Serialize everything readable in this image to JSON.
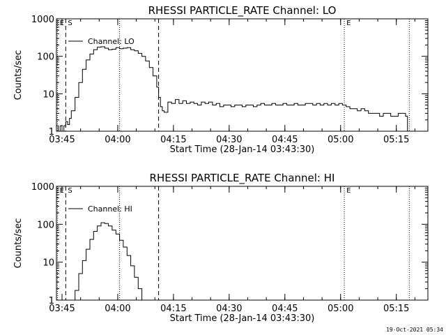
{
  "footer": {
    "timestamp": "19-Oct-2021 05:34"
  },
  "chart_data": [
    {
      "type": "line",
      "title": "RHESSI PARTICLE_RATE Channel: LO",
      "xlabel": "Start Time (28-Jan-14 03:43:30)",
      "ylabel": "Counts/sec",
      "yscale": "log",
      "ylim": [
        1,
        1000
      ],
      "xlim_minutes": [
        0,
        100
      ],
      "xticks": [
        {
          "t": 1.5,
          "label": "03:45"
        },
        {
          "t": 16.5,
          "label": "04:00"
        },
        {
          "t": 31.5,
          "label": "04:15"
        },
        {
          "t": 46.5,
          "label": "04:30"
        },
        {
          "t": 61.5,
          "label": "04:45"
        },
        {
          "t": 76.5,
          "label": "05:00"
        },
        {
          "t": 91.5,
          "label": "05:15"
        }
      ],
      "yticks": [
        {
          "v": 1,
          "label": "1"
        },
        {
          "v": 10,
          "label": "10"
        },
        {
          "v": 100,
          "label": "100"
        },
        {
          "v": 1000,
          "label": "1000"
        }
      ],
      "legend": {
        "label": "Channel: LO",
        "placement": "top-left"
      },
      "markers": [
        {
          "t": 0.3,
          "style": "dotted",
          "label": "E"
        },
        {
          "t": 2.5,
          "style": "dashed",
          "label": "S"
        },
        {
          "t": 17.0,
          "style": "dotted",
          "label": ""
        },
        {
          "t": 27.5,
          "style": "dashed",
          "label": ""
        },
        {
          "t": 77.5,
          "style": "dotted",
          "label": "E"
        },
        {
          "t": 95.0,
          "style": "dotted",
          "label": ""
        }
      ],
      "series": [
        {
          "name": "Channel: LO",
          "x": [
            0,
            0.5,
            1,
            1.5,
            2,
            2.5,
            3,
            3.5,
            4,
            5,
            6,
            7,
            8,
            9,
            10,
            11,
            12,
            13,
            14,
            15,
            16,
            17,
            18,
            19,
            20,
            21,
            22,
            23,
            24,
            25,
            26,
            27,
            27.5,
            28,
            28.5,
            29,
            30,
            31,
            32,
            33,
            34,
            35,
            36,
            37,
            38,
            39,
            40,
            41,
            42,
            43,
            44,
            45,
            46,
            47,
            48,
            49,
            50,
            51,
            52,
            53,
            54,
            55,
            56,
            57,
            58,
            59,
            60,
            61,
            62,
            63,
            64,
            65,
            66,
            67,
            68,
            69,
            70,
            71,
            72,
            73,
            74,
            75,
            76,
            77,
            78,
            79,
            80,
            81,
            82,
            83,
            84,
            85,
            86,
            87,
            88,
            89,
            90,
            91,
            92,
            93,
            94,
            94.5
          ],
          "y": [
            1.4,
            1,
            1.4,
            1,
            1.4,
            1.8,
            1.5,
            2.2,
            3.5,
            8,
            20,
            45,
            80,
            115,
            150,
            175,
            180,
            165,
            150,
            155,
            170,
            160,
            165,
            170,
            150,
            140,
            120,
            100,
            75,
            50,
            30,
            15,
            8,
            4.5,
            3.5,
            3.2,
            6,
            5.5,
            7,
            5.5,
            6.5,
            5.5,
            6,
            5.5,
            5,
            6,
            5.5,
            6,
            5,
            5.5,
            4.5,
            5,
            5,
            4.5,
            5,
            5,
            4.5,
            5,
            5,
            4.5,
            5,
            5.5,
            5,
            5,
            5.5,
            5,
            5,
            5.5,
            5,
            5,
            5.5,
            5,
            5,
            5.5,
            5.5,
            5,
            5.5,
            5,
            5.5,
            5,
            5.5,
            5,
            5.5,
            5,
            4.5,
            4,
            4,
            3.5,
            4,
            3.5,
            3,
            3,
            3,
            2.5,
            3,
            3,
            2.5,
            2.5,
            3,
            3,
            2.5,
            1
          ]
        }
      ]
    },
    {
      "type": "line",
      "title": "RHESSI PARTICLE_RATE Channel: HI",
      "xlabel": "Start Time (28-Jan-14 03:43:30)",
      "ylabel": "Counts/sec",
      "yscale": "log",
      "ylim": [
        1,
        1000
      ],
      "xlim_minutes": [
        0,
        100
      ],
      "xticks": [
        {
          "t": 1.5,
          "label": "03:45"
        },
        {
          "t": 16.5,
          "label": "04:00"
        },
        {
          "t": 31.5,
          "label": "04:15"
        },
        {
          "t": 46.5,
          "label": "04:30"
        },
        {
          "t": 61.5,
          "label": "04:45"
        },
        {
          "t": 76.5,
          "label": "05:00"
        },
        {
          "t": 91.5,
          "label": "05:15"
        }
      ],
      "yticks": [
        {
          "v": 1,
          "label": "1"
        },
        {
          "v": 10,
          "label": "10"
        },
        {
          "v": 100,
          "label": "100"
        },
        {
          "v": 1000,
          "label": "1000"
        }
      ],
      "legend": {
        "label": "Channel: HI",
        "placement": "top-left"
      },
      "markers": [
        {
          "t": 0.3,
          "style": "dotted",
          "label": "E"
        },
        {
          "t": 2.5,
          "style": "dashed",
          "label": "S"
        },
        {
          "t": 17.0,
          "style": "dotted",
          "label": ""
        },
        {
          "t": 27.5,
          "style": "dashed",
          "label": ""
        },
        {
          "t": 77.5,
          "style": "dotted",
          "label": "E"
        },
        {
          "t": 95.0,
          "style": "dotted",
          "label": ""
        }
      ],
      "series": [
        {
          "name": "Channel: HI",
          "x": [
            4.5,
            5,
            6,
            7,
            8,
            9,
            10,
            11,
            12,
            13,
            14,
            15,
            16,
            17,
            18,
            19,
            20,
            21,
            22,
            23
          ],
          "y": [
            1,
            1.8,
            5,
            11,
            22,
            40,
            65,
            90,
            110,
            105,
            90,
            70,
            55,
            38,
            25,
            15,
            8,
            4,
            2,
            1
          ]
        }
      ]
    }
  ]
}
